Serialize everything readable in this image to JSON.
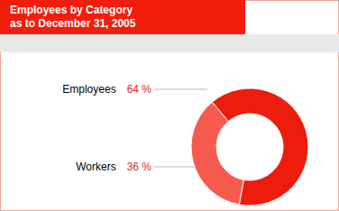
{
  "chart_data": {
    "type": "pie",
    "title": [
      "Employees by Category",
      "as to December 31, 2005"
    ],
    "categories": [
      "Employees",
      "Workers"
    ],
    "values": [
      64,
      36
    ],
    "value_labels": [
      "64 %",
      "36 %"
    ],
    "colors": [
      "#ee1c0c",
      "#f65b4e"
    ],
    "data_labels": true
  }
}
